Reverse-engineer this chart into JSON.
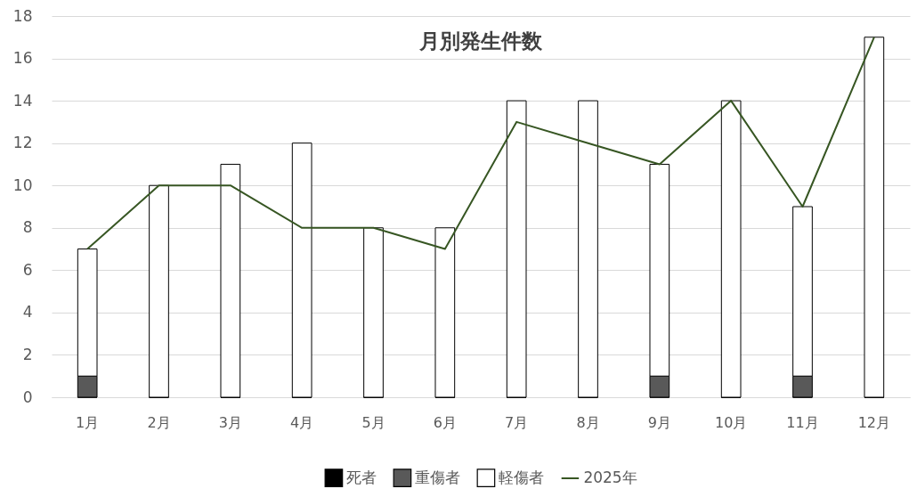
{
  "chart_data": {
    "type": "bar",
    "title": "月別発生件数",
    "categories": [
      "1月",
      "2月",
      "3月",
      "4月",
      "5月",
      "6月",
      "7月",
      "8月",
      "9月",
      "10月",
      "11月",
      "12月"
    ],
    "stacked": true,
    "ylim": [
      0,
      18
    ],
    "yticks": [
      0,
      2,
      4,
      6,
      8,
      10,
      12,
      14,
      16,
      18
    ],
    "grid": "y",
    "legend": "bottom",
    "series": [
      {
        "name": "死者",
        "color": "#000000",
        "values": [
          0,
          0,
          0,
          0,
          0,
          0,
          0,
          0,
          0,
          0,
          0,
          0
        ]
      },
      {
        "name": "重傷者",
        "color": "#595959",
        "values": [
          1,
          0,
          0,
          0,
          0,
          0,
          0,
          0,
          1,
          0,
          1,
          0
        ]
      },
      {
        "name": "軽傷者",
        "color": "#ffffff",
        "values": [
          6,
          10,
          11,
          12,
          8,
          8,
          14,
          14,
          10,
          14,
          8,
          17
        ]
      },
      {
        "name": "2025年",
        "type": "line",
        "color": "#375623",
        "values": [
          7,
          10,
          10,
          8,
          8,
          7,
          13,
          12,
          11,
          14,
          9,
          17
        ]
      }
    ]
  }
}
